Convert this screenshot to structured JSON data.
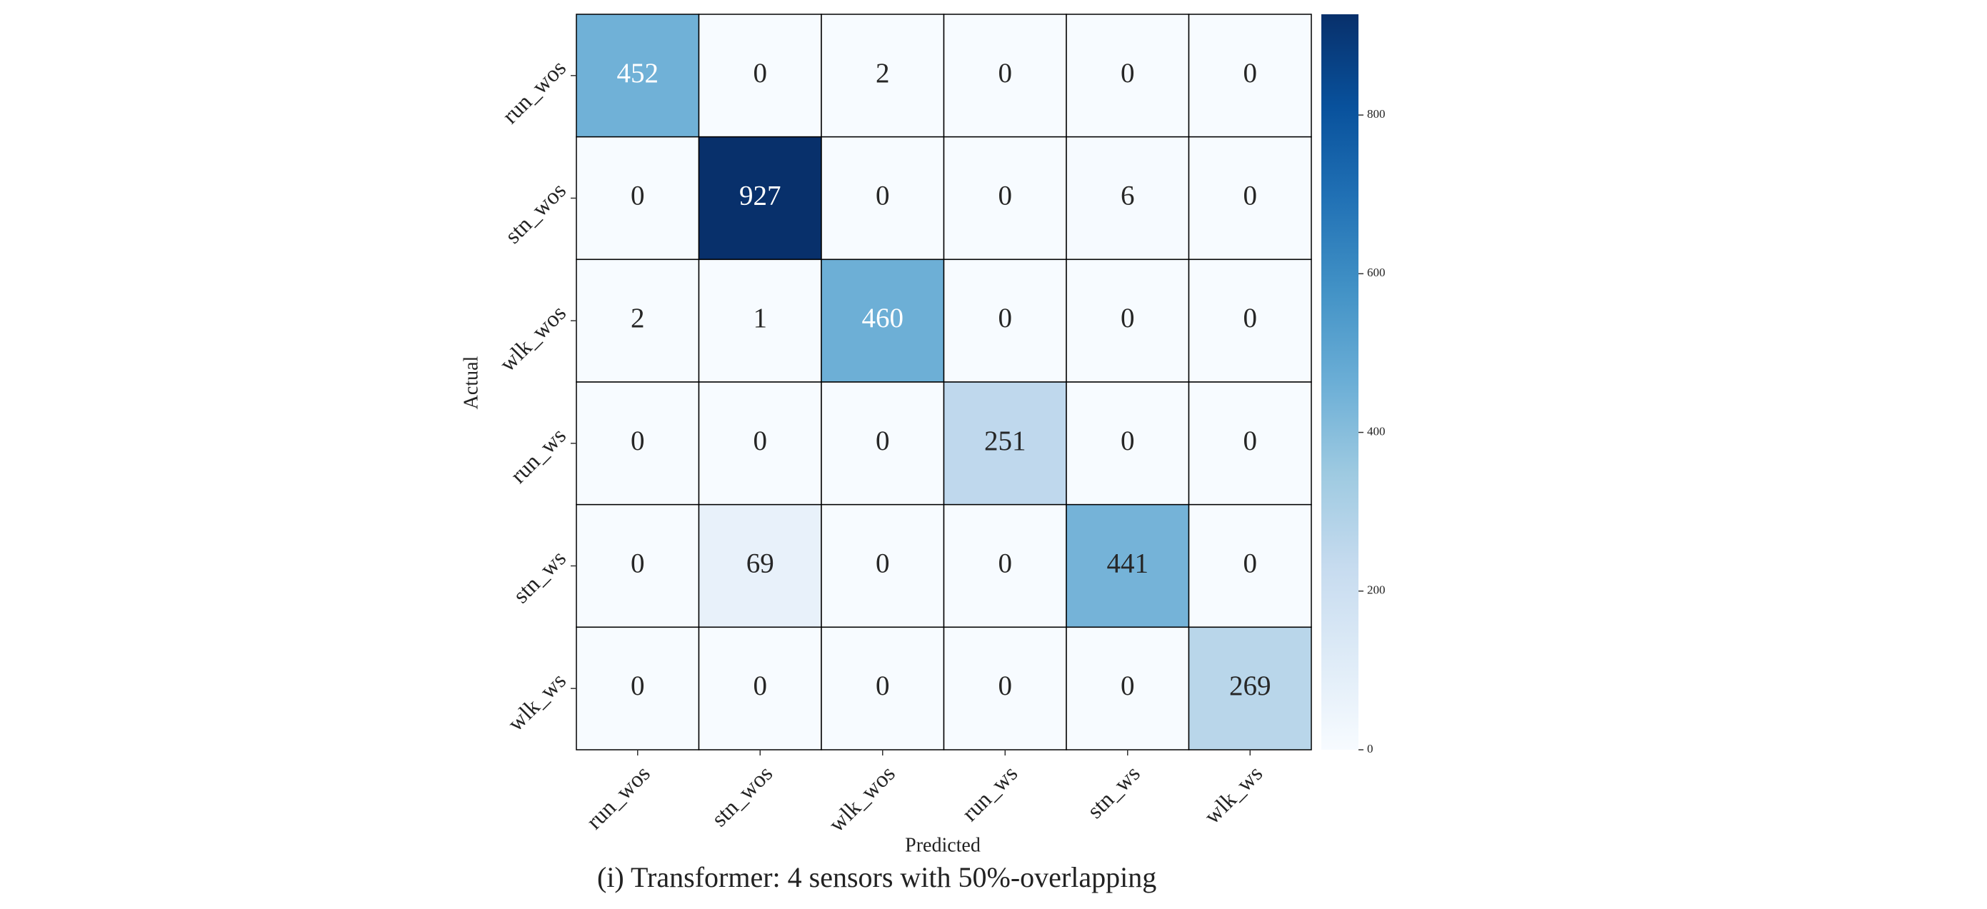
{
  "chart_data": {
    "type": "heatmap",
    "x_label": "Predicted",
    "y_label": "Actual",
    "caption": "(i) Transformer: 4 sensors with 50%-overlapping",
    "x_categories": [
      "run_wos",
      "stn_wos",
      "wlk_wos",
      "run_ws",
      "stn_ws",
      "wlk_ws"
    ],
    "y_categories": [
      "run_wos",
      "stn_wos",
      "wlk_wos",
      "run_ws",
      "stn_ws",
      "wlk_ws"
    ],
    "values": [
      [
        452,
        0,
        2,
        0,
        0,
        0
      ],
      [
        0,
        927,
        0,
        0,
        6,
        0
      ],
      [
        2,
        1,
        460,
        0,
        0,
        0
      ],
      [
        0,
        0,
        0,
        251,
        0,
        0
      ],
      [
        0,
        69,
        0,
        0,
        441,
        0
      ],
      [
        0,
        0,
        0,
        0,
        0,
        269
      ]
    ],
    "colormap": "Blues",
    "clim": [
      0,
      927
    ],
    "cticks": [
      0,
      200,
      400,
      600,
      800
    ]
  }
}
